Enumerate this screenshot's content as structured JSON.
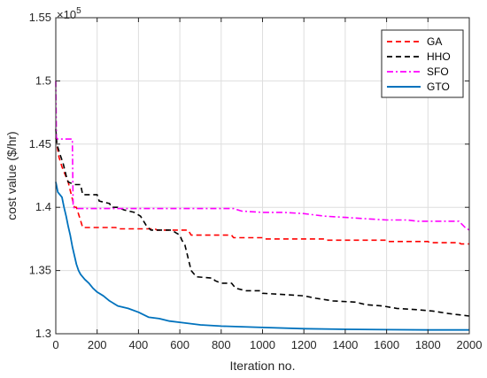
{
  "chart_data": {
    "type": "line",
    "xlabel": "Iteration no.",
    "ylabel": "cost value ($/hr)",
    "exponent_label": "×10",
    "exponent_power": "5",
    "xlim": [
      0,
      2000
    ],
    "ylim": [
      1.3,
      1.55
    ],
    "xticks": [
      0,
      200,
      400,
      600,
      800,
      1000,
      1200,
      1400,
      1600,
      1800,
      2000
    ],
    "yticks": [
      1.3,
      1.35,
      1.4,
      1.45,
      1.5,
      1.55
    ],
    "xtick_labels": [
      "0",
      "200",
      "400",
      "600",
      "800",
      "1000",
      "1200",
      "1400",
      "1600",
      "1800",
      "2000"
    ],
    "ytick_labels": [
      "1.3",
      "1.35",
      "1.4",
      "1.45",
      "1.5",
      "1.55"
    ],
    "grid": true,
    "legend_position": "top-right",
    "series": [
      {
        "name": "GA",
        "color": "#ff0000",
        "dash": "dashed",
        "points": [
          [
            0,
            1.455
          ],
          [
            5,
            1.45
          ],
          [
            15,
            1.44
          ],
          [
            30,
            1.432
          ],
          [
            45,
            1.426
          ],
          [
            60,
            1.42
          ],
          [
            75,
            1.41
          ],
          [
            90,
            1.4
          ],
          [
            100,
            1.4
          ],
          [
            115,
            1.392
          ],
          [
            130,
            1.384
          ],
          [
            200,
            1.384
          ],
          [
            290,
            1.384
          ],
          [
            300,
            1.383
          ],
          [
            480,
            1.383
          ],
          [
            490,
            1.382
          ],
          [
            640,
            1.382
          ],
          [
            655,
            1.378
          ],
          [
            850,
            1.378
          ],
          [
            860,
            1.376
          ],
          [
            1000,
            1.376
          ],
          [
            1010,
            1.375
          ],
          [
            1300,
            1.375
          ],
          [
            1310,
            1.374
          ],
          [
            1600,
            1.374
          ],
          [
            1610,
            1.373
          ],
          [
            1800,
            1.373
          ],
          [
            1810,
            1.372
          ],
          [
            1950,
            1.372
          ],
          [
            1960,
            1.371
          ],
          [
            2000,
            1.371
          ]
        ]
      },
      {
        "name": "HHO",
        "color": "#000000",
        "dash": "dashed",
        "points": [
          [
            0,
            1.462
          ],
          [
            5,
            1.45
          ],
          [
            20,
            1.442
          ],
          [
            35,
            1.435
          ],
          [
            50,
            1.425
          ],
          [
            60,
            1.42
          ],
          [
            90,
            1.418
          ],
          [
            120,
            1.418
          ],
          [
            130,
            1.41
          ],
          [
            200,
            1.41
          ],
          [
            210,
            1.405
          ],
          [
            260,
            1.403
          ],
          [
            270,
            1.4
          ],
          [
            300,
            1.4
          ],
          [
            330,
            1.398
          ],
          [
            380,
            1.396
          ],
          [
            410,
            1.393
          ],
          [
            440,
            1.385
          ],
          [
            460,
            1.382
          ],
          [
            560,
            1.382
          ],
          [
            580,
            1.38
          ],
          [
            600,
            1.378
          ],
          [
            610,
            1.374
          ],
          [
            625,
            1.37
          ],
          [
            640,
            1.36
          ],
          [
            655,
            1.35
          ],
          [
            680,
            1.345
          ],
          [
            760,
            1.344
          ],
          [
            770,
            1.342
          ],
          [
            800,
            1.34
          ],
          [
            850,
            1.34
          ],
          [
            870,
            1.336
          ],
          [
            920,
            1.334
          ],
          [
            990,
            1.334
          ],
          [
            1000,
            1.332
          ],
          [
            1100,
            1.331
          ],
          [
            1200,
            1.33
          ],
          [
            1260,
            1.328
          ],
          [
            1300,
            1.327
          ],
          [
            1340,
            1.326
          ],
          [
            1450,
            1.325
          ],
          [
            1500,
            1.323
          ],
          [
            1580,
            1.322
          ],
          [
            1650,
            1.32
          ],
          [
            1750,
            1.319
          ],
          [
            1820,
            1.318
          ],
          [
            1900,
            1.316
          ],
          [
            1950,
            1.315
          ],
          [
            2000,
            1.314
          ]
        ]
      },
      {
        "name": "SFO",
        "color": "#ff00ff",
        "dash": "dashdot",
        "points": [
          [
            0,
            1.5
          ],
          [
            3,
            1.455
          ],
          [
            10,
            1.454
          ],
          [
            80,
            1.454
          ],
          [
            84,
            1.4
          ],
          [
            100,
            1.399
          ],
          [
            200,
            1.399
          ],
          [
            300,
            1.399
          ],
          [
            500,
            1.399
          ],
          [
            700,
            1.399
          ],
          [
            860,
            1.399
          ],
          [
            900,
            1.397
          ],
          [
            1000,
            1.396
          ],
          [
            1100,
            1.396
          ],
          [
            1200,
            1.395
          ],
          [
            1300,
            1.393
          ],
          [
            1400,
            1.392
          ],
          [
            1500,
            1.391
          ],
          [
            1600,
            1.39
          ],
          [
            1700,
            1.39
          ],
          [
            1750,
            1.389
          ],
          [
            1950,
            1.389
          ],
          [
            1980,
            1.384
          ],
          [
            2000,
            1.382
          ]
        ]
      },
      {
        "name": "GTO",
        "color": "#0072bd",
        "dash": "solid",
        "points": [
          [
            0,
            1.42
          ],
          [
            5,
            1.416
          ],
          [
            10,
            1.412
          ],
          [
            20,
            1.41
          ],
          [
            30,
            1.408
          ],
          [
            40,
            1.4
          ],
          [
            50,
            1.393
          ],
          [
            60,
            1.385
          ],
          [
            70,
            1.378
          ],
          [
            80,
            1.369
          ],
          [
            90,
            1.362
          ],
          [
            100,
            1.355
          ],
          [
            110,
            1.35
          ],
          [
            120,
            1.347
          ],
          [
            140,
            1.343
          ],
          [
            160,
            1.34
          ],
          [
            180,
            1.336
          ],
          [
            200,
            1.333
          ],
          [
            230,
            1.33
          ],
          [
            260,
            1.326
          ],
          [
            300,
            1.322
          ],
          [
            350,
            1.32
          ],
          [
            400,
            1.317
          ],
          [
            450,
            1.313
          ],
          [
            500,
            1.312
          ],
          [
            550,
            1.31
          ],
          [
            600,
            1.309
          ],
          [
            700,
            1.307
          ],
          [
            800,
            1.306
          ],
          [
            900,
            1.3055
          ],
          [
            1000,
            1.305
          ],
          [
            1200,
            1.304
          ],
          [
            1400,
            1.3035
          ],
          [
            1600,
            1.3032
          ],
          [
            1800,
            1.303
          ],
          [
            2000,
            1.303
          ]
        ]
      }
    ]
  }
}
